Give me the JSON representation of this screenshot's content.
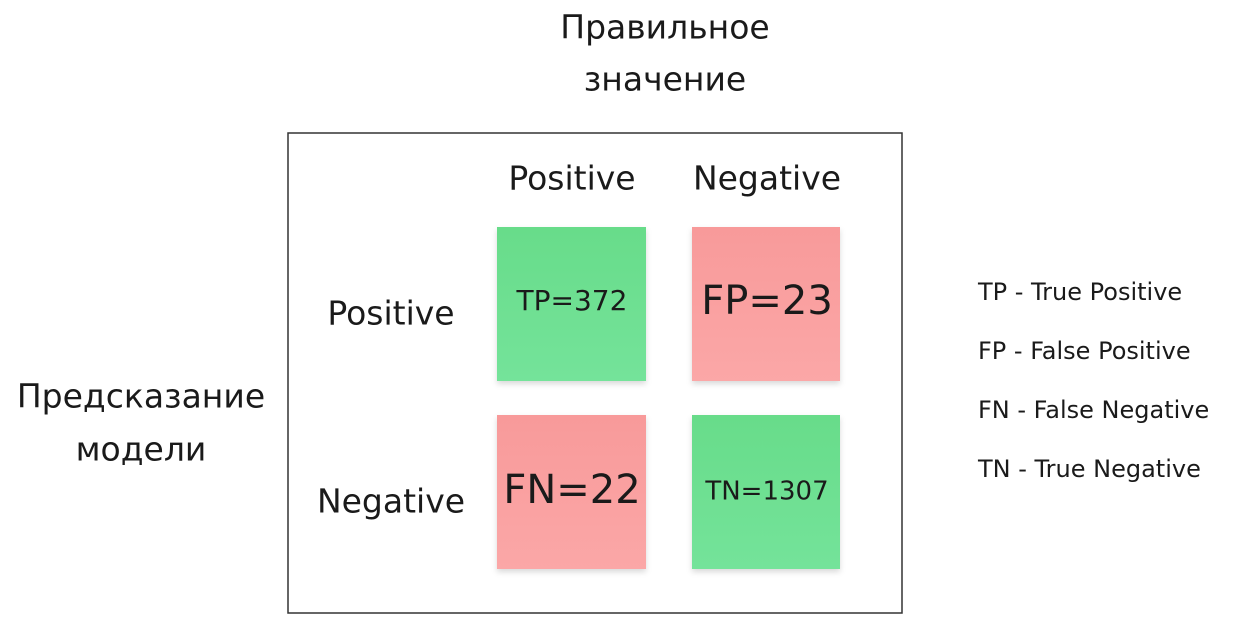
{
  "title_lines": [
    "Правильное",
    "значение"
  ],
  "columns": [
    "Positive",
    "Negative"
  ],
  "rows": [
    "Positive",
    "Negative"
  ],
  "side_label_lines": [
    "Предсказание",
    "модели"
  ],
  "cells": [
    [
      "TP=372",
      "FP=23"
    ],
    [
      "FN=22",
      "TN=1307"
    ]
  ],
  "legend": [
    "TP - True Positive",
    "FP - False Positive",
    "FN - False Negative",
    "TN - True Negative"
  ]
}
